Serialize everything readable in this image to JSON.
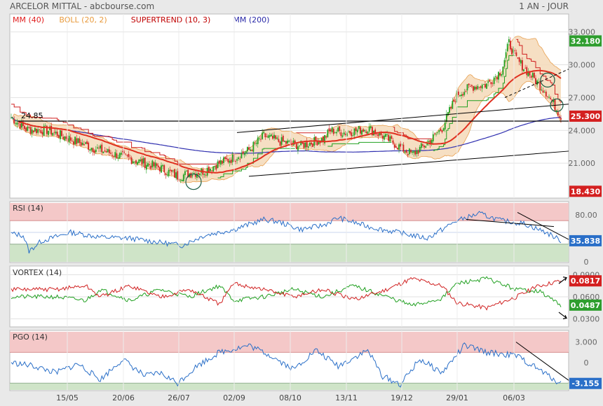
{
  "header": {
    "title": "ARCELOR MITTAL - abcbourse.com",
    "period": "1 AN - JOUR"
  },
  "legend": [
    {
      "text": "MM (40)",
      "color": "#e02020"
    },
    {
      "text": "BOLL (20, 2)",
      "color": "#e89a3c"
    },
    {
      "text": "SUPERTREND (10, 3)",
      "color": "#c00000"
    },
    {
      "text": "MM (200)",
      "color": "#2a2aa8"
    }
  ],
  "colors": {
    "bg": "#e9e9e9",
    "panel": "#ffffff",
    "boll_fill": "#f5d9b8",
    "boll_line": "#e8a050",
    "ma40": "#e03020",
    "ma200": "#3030b0",
    "st_red": "#d02020",
    "st_green": "#20a020",
    "rsi_line": "#2a6fc8",
    "overbought": "#f4c8c8",
    "oversold": "#cfe4c8",
    "vortex_pos": "#20a020",
    "vortex_neg": "#d02020",
    "badge_green": "#2e9e2e",
    "badge_red": "#d42020",
    "badge_blue": "#2a6fc8"
  },
  "chart_data": [
    {
      "type": "candlestick",
      "title": "ARCELOR MITTAL",
      "x_ticks": [
        "15/05",
        "20/06",
        "26/07",
        "02/09",
        "08/10",
        "13/11",
        "19/12",
        "29/01",
        "06/03"
      ],
      "y_ticks": [
        "33.000",
        "30.000",
        "27.000",
        "24.000",
        "21.000"
      ],
      "ylim": [
        18.0,
        34.0
      ],
      "annotation": "24.85",
      "last_price": "25.300",
      "high_label": "32.180",
      "low_label": "18.430",
      "anchors": [
        [
          0,
          25.2
        ],
        [
          10,
          24.1
        ],
        [
          25,
          24.0
        ],
        [
          40,
          23.2
        ],
        [
          55,
          22.4
        ],
        [
          70,
          21.8
        ],
        [
          85,
          21.2
        ],
        [
          100,
          20.6
        ],
        [
          112,
          19.8
        ],
        [
          118,
          20.0
        ],
        [
          130,
          20.3
        ],
        [
          140,
          21.0
        ],
        [
          150,
          21.5
        ],
        [
          160,
          22.2
        ],
        [
          170,
          23.5
        ],
        [
          180,
          23.0
        ],
        [
          195,
          22.6
        ],
        [
          210,
          23.2
        ],
        [
          215,
          24.0
        ],
        [
          225,
          23.8
        ],
        [
          240,
          24.2
        ],
        [
          250,
          23.5
        ],
        [
          260,
          22.6
        ],
        [
          270,
          21.8
        ],
        [
          280,
          22.8
        ],
        [
          290,
          24.2
        ],
        [
          300,
          27.3
        ],
        [
          310,
          28.0
        ],
        [
          320,
          28.2
        ],
        [
          330,
          29.5
        ],
        [
          335,
          32.0
        ],
        [
          340,
          30.5
        ],
        [
          350,
          29.0
        ],
        [
          360,
          27.5
        ],
        [
          370,
          25.3
        ]
      ],
      "series": [
        {
          "name": "MM (40)"
        },
        {
          "name": "BOLL (20, 2)"
        },
        {
          "name": "SUPERTREND (10, 3)"
        },
        {
          "name": "MM (200)"
        }
      ]
    },
    {
      "type": "line",
      "title": "RSI (14)",
      "y_ticks": [
        "80.00",
        "0"
      ],
      "ylim": [
        0,
        100
      ],
      "zones": {
        "overbought": 70,
        "oversold": 30
      },
      "last_value": "35.838",
      "anchors": [
        [
          0,
          48
        ],
        [
          8,
          45
        ],
        [
          12,
          18
        ],
        [
          20,
          35
        ],
        [
          40,
          50
        ],
        [
          60,
          42
        ],
        [
          80,
          40
        ],
        [
          100,
          33
        ],
        [
          115,
          28
        ],
        [
          130,
          45
        ],
        [
          150,
          55
        ],
        [
          170,
          72
        ],
        [
          180,
          68
        ],
        [
          195,
          55
        ],
        [
          210,
          62
        ],
        [
          220,
          75
        ],
        [
          240,
          60
        ],
        [
          260,
          50
        ],
        [
          280,
          40
        ],
        [
          300,
          70
        ],
        [
          315,
          82
        ],
        [
          330,
          70
        ],
        [
          345,
          65
        ],
        [
          360,
          50
        ],
        [
          370,
          36
        ]
      ]
    },
    {
      "type": "line",
      "title": "VORTEX (14)",
      "y_ticks": [
        "0.0900",
        "0.0600",
        "0.0300"
      ],
      "ylim": [
        0.02,
        0.1
      ],
      "last_values": {
        "plus": "0.0487",
        "minus": "0.0817"
      },
      "plus_anchors": [
        [
          0,
          0.06
        ],
        [
          30,
          0.06
        ],
        [
          50,
          0.055
        ],
        [
          60,
          0.07
        ],
        [
          80,
          0.055
        ],
        [
          100,
          0.07
        ],
        [
          120,
          0.06
        ],
        [
          140,
          0.075
        ],
        [
          150,
          0.055
        ],
        [
          170,
          0.06
        ],
        [
          190,
          0.07
        ],
        [
          210,
          0.06
        ],
        [
          230,
          0.075
        ],
        [
          250,
          0.062
        ],
        [
          270,
          0.048
        ],
        [
          290,
          0.058
        ],
        [
          300,
          0.078
        ],
        [
          320,
          0.085
        ],
        [
          340,
          0.07
        ],
        [
          355,
          0.068
        ],
        [
          370,
          0.049
        ]
      ],
      "minus_anchors": [
        [
          0,
          0.07
        ],
        [
          30,
          0.07
        ],
        [
          50,
          0.075
        ],
        [
          60,
          0.06
        ],
        [
          80,
          0.075
        ],
        [
          100,
          0.06
        ],
        [
          120,
          0.07
        ],
        [
          140,
          0.05
        ],
        [
          150,
          0.078
        ],
        [
          170,
          0.07
        ],
        [
          190,
          0.06
        ],
        [
          210,
          0.07
        ],
        [
          230,
          0.056
        ],
        [
          250,
          0.068
        ],
        [
          270,
          0.085
        ],
        [
          290,
          0.075
        ],
        [
          300,
          0.052
        ],
        [
          320,
          0.045
        ],
        [
          340,
          0.06
        ],
        [
          355,
          0.075
        ],
        [
          370,
          0.082
        ]
      ]
    },
    {
      "type": "line",
      "title": "PGO (14)",
      "y_ticks": [
        "3.000",
        "0"
      ],
      "ylim": [
        -4,
        4.5
      ],
      "zones": {
        "upper": 1.5,
        "lower": -3.0
      },
      "last_value": "-3.155",
      "anchors": [
        [
          0,
          0
        ],
        [
          15,
          -0.5
        ],
        [
          30,
          -1.5
        ],
        [
          45,
          -0.2
        ],
        [
          60,
          -2.5
        ],
        [
          75,
          0.5
        ],
        [
          90,
          -2.0
        ],
        [
          100,
          -1.5
        ],
        [
          112,
          -3.0
        ],
        [
          125,
          -0.5
        ],
        [
          140,
          1.5
        ],
        [
          160,
          2.5
        ],
        [
          175,
          1.0
        ],
        [
          190,
          -1.0
        ],
        [
          205,
          1.8
        ],
        [
          220,
          -0.5
        ],
        [
          240,
          1.8
        ],
        [
          250,
          -2.0
        ],
        [
          262,
          -3.2
        ],
        [
          275,
          0.5
        ],
        [
          290,
          -1.5
        ],
        [
          305,
          2.5
        ],
        [
          320,
          1.5
        ],
        [
          340,
          1.0
        ],
        [
          355,
          -1.0
        ],
        [
          370,
          -3.1
        ]
      ]
    }
  ]
}
